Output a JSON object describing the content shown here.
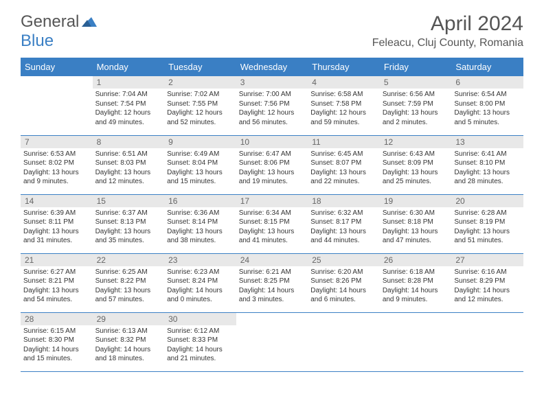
{
  "logo": {
    "general": "General",
    "blue": "Blue"
  },
  "title": "April 2024",
  "subtitle": "Feleacu, Cluj County, Romania",
  "colors": {
    "header_bg": "#3a7fc4",
    "header_text": "#ffffff",
    "daynum_bg": "#e8e8e8",
    "daynum_text": "#666666",
    "body_text": "#333333",
    "border": "#3a7fc4"
  },
  "weekdays": [
    "Sunday",
    "Monday",
    "Tuesday",
    "Wednesday",
    "Thursday",
    "Friday",
    "Saturday"
  ],
  "weeks": [
    [
      {
        "n": "",
        "sr": "",
        "ss": "",
        "dl": ""
      },
      {
        "n": "1",
        "sr": "Sunrise: 7:04 AM",
        "ss": "Sunset: 7:54 PM",
        "dl": "Daylight: 12 hours and 49 minutes."
      },
      {
        "n": "2",
        "sr": "Sunrise: 7:02 AM",
        "ss": "Sunset: 7:55 PM",
        "dl": "Daylight: 12 hours and 52 minutes."
      },
      {
        "n": "3",
        "sr": "Sunrise: 7:00 AM",
        "ss": "Sunset: 7:56 PM",
        "dl": "Daylight: 12 hours and 56 minutes."
      },
      {
        "n": "4",
        "sr": "Sunrise: 6:58 AM",
        "ss": "Sunset: 7:58 PM",
        "dl": "Daylight: 12 hours and 59 minutes."
      },
      {
        "n": "5",
        "sr": "Sunrise: 6:56 AM",
        "ss": "Sunset: 7:59 PM",
        "dl": "Daylight: 13 hours and 2 minutes."
      },
      {
        "n": "6",
        "sr": "Sunrise: 6:54 AM",
        "ss": "Sunset: 8:00 PM",
        "dl": "Daylight: 13 hours and 5 minutes."
      }
    ],
    [
      {
        "n": "7",
        "sr": "Sunrise: 6:53 AM",
        "ss": "Sunset: 8:02 PM",
        "dl": "Daylight: 13 hours and 9 minutes."
      },
      {
        "n": "8",
        "sr": "Sunrise: 6:51 AM",
        "ss": "Sunset: 8:03 PM",
        "dl": "Daylight: 13 hours and 12 minutes."
      },
      {
        "n": "9",
        "sr": "Sunrise: 6:49 AM",
        "ss": "Sunset: 8:04 PM",
        "dl": "Daylight: 13 hours and 15 minutes."
      },
      {
        "n": "10",
        "sr": "Sunrise: 6:47 AM",
        "ss": "Sunset: 8:06 PM",
        "dl": "Daylight: 13 hours and 19 minutes."
      },
      {
        "n": "11",
        "sr": "Sunrise: 6:45 AM",
        "ss": "Sunset: 8:07 PM",
        "dl": "Daylight: 13 hours and 22 minutes."
      },
      {
        "n": "12",
        "sr": "Sunrise: 6:43 AM",
        "ss": "Sunset: 8:09 PM",
        "dl": "Daylight: 13 hours and 25 minutes."
      },
      {
        "n": "13",
        "sr": "Sunrise: 6:41 AM",
        "ss": "Sunset: 8:10 PM",
        "dl": "Daylight: 13 hours and 28 minutes."
      }
    ],
    [
      {
        "n": "14",
        "sr": "Sunrise: 6:39 AM",
        "ss": "Sunset: 8:11 PM",
        "dl": "Daylight: 13 hours and 31 minutes."
      },
      {
        "n": "15",
        "sr": "Sunrise: 6:37 AM",
        "ss": "Sunset: 8:13 PM",
        "dl": "Daylight: 13 hours and 35 minutes."
      },
      {
        "n": "16",
        "sr": "Sunrise: 6:36 AM",
        "ss": "Sunset: 8:14 PM",
        "dl": "Daylight: 13 hours and 38 minutes."
      },
      {
        "n": "17",
        "sr": "Sunrise: 6:34 AM",
        "ss": "Sunset: 8:15 PM",
        "dl": "Daylight: 13 hours and 41 minutes."
      },
      {
        "n": "18",
        "sr": "Sunrise: 6:32 AM",
        "ss": "Sunset: 8:17 PM",
        "dl": "Daylight: 13 hours and 44 minutes."
      },
      {
        "n": "19",
        "sr": "Sunrise: 6:30 AM",
        "ss": "Sunset: 8:18 PM",
        "dl": "Daylight: 13 hours and 47 minutes."
      },
      {
        "n": "20",
        "sr": "Sunrise: 6:28 AM",
        "ss": "Sunset: 8:19 PM",
        "dl": "Daylight: 13 hours and 51 minutes."
      }
    ],
    [
      {
        "n": "21",
        "sr": "Sunrise: 6:27 AM",
        "ss": "Sunset: 8:21 PM",
        "dl": "Daylight: 13 hours and 54 minutes."
      },
      {
        "n": "22",
        "sr": "Sunrise: 6:25 AM",
        "ss": "Sunset: 8:22 PM",
        "dl": "Daylight: 13 hours and 57 minutes."
      },
      {
        "n": "23",
        "sr": "Sunrise: 6:23 AM",
        "ss": "Sunset: 8:24 PM",
        "dl": "Daylight: 14 hours and 0 minutes."
      },
      {
        "n": "24",
        "sr": "Sunrise: 6:21 AM",
        "ss": "Sunset: 8:25 PM",
        "dl": "Daylight: 14 hours and 3 minutes."
      },
      {
        "n": "25",
        "sr": "Sunrise: 6:20 AM",
        "ss": "Sunset: 8:26 PM",
        "dl": "Daylight: 14 hours and 6 minutes."
      },
      {
        "n": "26",
        "sr": "Sunrise: 6:18 AM",
        "ss": "Sunset: 8:28 PM",
        "dl": "Daylight: 14 hours and 9 minutes."
      },
      {
        "n": "27",
        "sr": "Sunrise: 6:16 AM",
        "ss": "Sunset: 8:29 PM",
        "dl": "Daylight: 14 hours and 12 minutes."
      }
    ],
    [
      {
        "n": "28",
        "sr": "Sunrise: 6:15 AM",
        "ss": "Sunset: 8:30 PM",
        "dl": "Daylight: 14 hours and 15 minutes."
      },
      {
        "n": "29",
        "sr": "Sunrise: 6:13 AM",
        "ss": "Sunset: 8:32 PM",
        "dl": "Daylight: 14 hours and 18 minutes."
      },
      {
        "n": "30",
        "sr": "Sunrise: 6:12 AM",
        "ss": "Sunset: 8:33 PM",
        "dl": "Daylight: 14 hours and 21 minutes."
      },
      {
        "n": "",
        "sr": "",
        "ss": "",
        "dl": ""
      },
      {
        "n": "",
        "sr": "",
        "ss": "",
        "dl": ""
      },
      {
        "n": "",
        "sr": "",
        "ss": "",
        "dl": ""
      },
      {
        "n": "",
        "sr": "",
        "ss": "",
        "dl": ""
      }
    ]
  ]
}
